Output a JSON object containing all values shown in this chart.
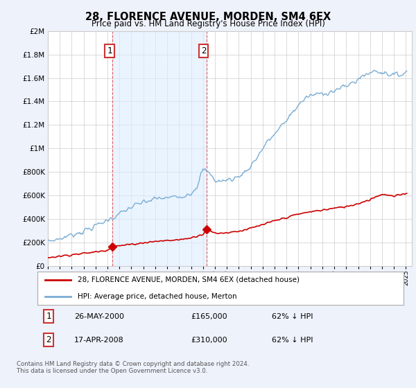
{
  "title": "28, FLORENCE AVENUE, MORDEN, SM4 6EX",
  "subtitle": "Price paid vs. HM Land Registry's House Price Index (HPI)",
  "background_color": "#eef2fb",
  "plot_background": "#ffffff",
  "grid_color": "#cccccc",
  "ylim": [
    0,
    2000000
  ],
  "yticks": [
    0,
    200000,
    400000,
    600000,
    800000,
    1000000,
    1200000,
    1400000,
    1600000,
    1800000,
    2000000
  ],
  "ytick_labels": [
    "£0",
    "£200K",
    "£400K",
    "£600K",
    "£800K",
    "£1M",
    "£1.2M",
    "£1.4M",
    "£1.6M",
    "£1.8M",
    "£2M"
  ],
  "hpi_color": "#7aadd4",
  "hpi_fill": "#ddeeff",
  "price_color": "#cc0000",
  "purchase1_date": 2000.41,
  "purchase1_price": 165000,
  "purchase1_label": "1",
  "purchase2_date": 2008.29,
  "purchase2_price": 310000,
  "purchase2_label": "2",
  "legend_line1": "28, FLORENCE AVENUE, MORDEN, SM4 6EX (detached house)",
  "legend_line2": "HPI: Average price, detached house, Merton",
  "footer": "Contains HM Land Registry data © Crown copyright and database right 2024.\nThis data is licensed under the Open Government Licence v3.0.",
  "xmin": 1995.0,
  "xmax": 2025.5
}
